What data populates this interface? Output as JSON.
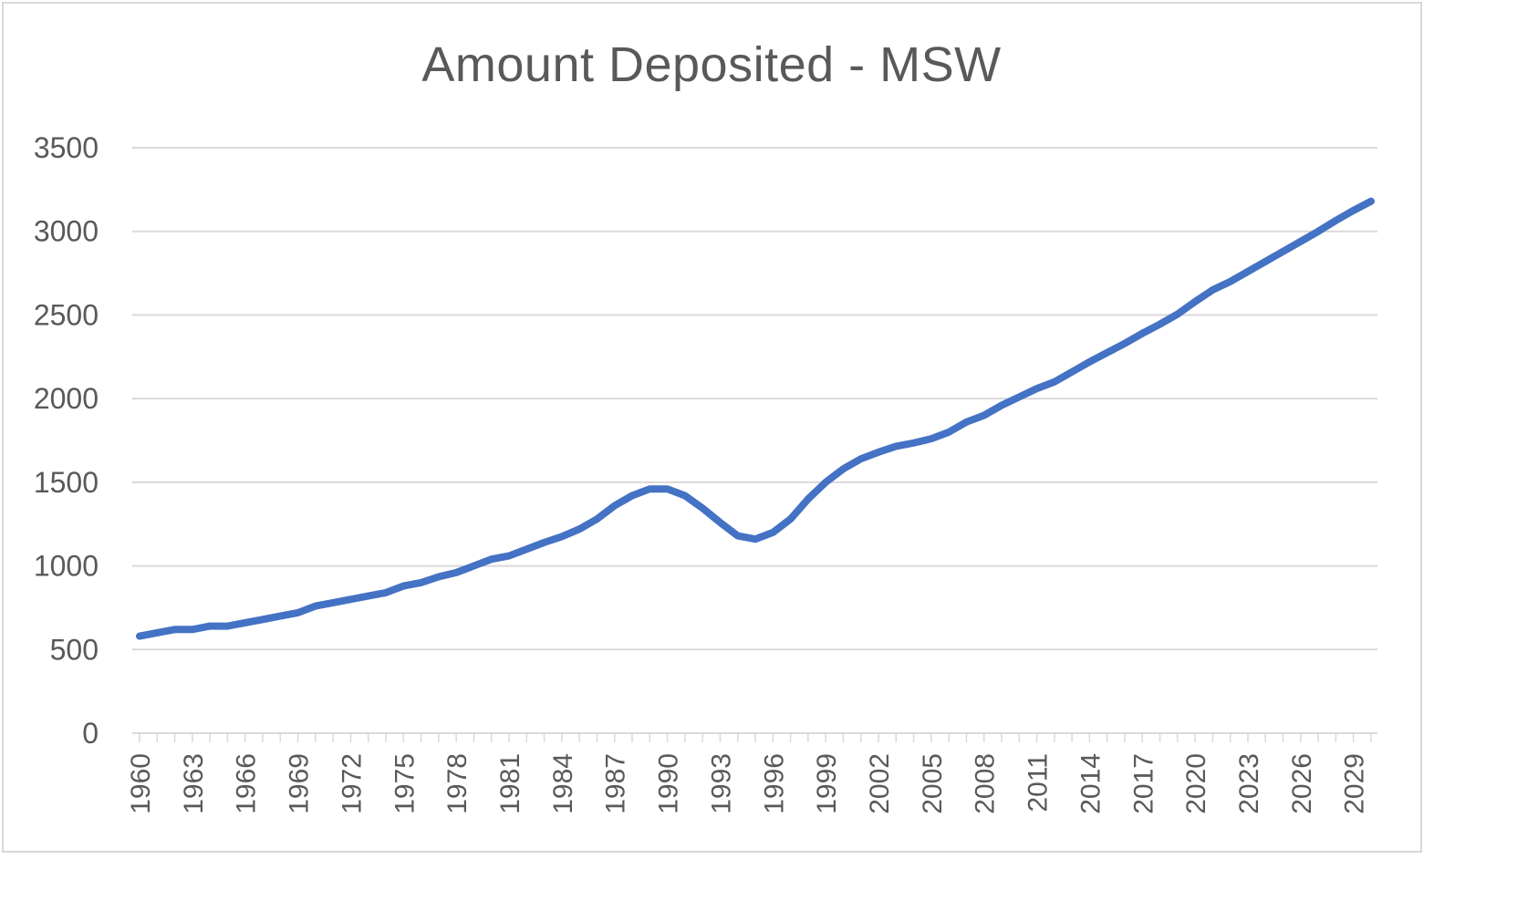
{
  "chart_data": {
    "type": "line",
    "title": "Amount Deposited - MSW",
    "xlabel": "",
    "ylabel": "",
    "ylim": [
      0,
      3500
    ],
    "yticks": [
      "0",
      "500",
      "1000",
      "1500",
      "2000",
      "2500",
      "3000",
      "3500"
    ],
    "xticks": [
      "1960",
      "1963",
      "1966",
      "1969",
      "1972",
      "1975",
      "1978",
      "1981",
      "1984",
      "1987",
      "1990",
      "1993",
      "1996",
      "1999",
      "2002",
      "2005",
      "2008",
      "2011",
      "2014",
      "2017",
      "2020",
      "2023",
      "2026",
      "2029"
    ],
    "grid": "horizontal",
    "legend": "none",
    "line_color": "#4472c4",
    "x": [
      1960,
      1961,
      1962,
      1963,
      1964,
      1965,
      1966,
      1967,
      1968,
      1969,
      1970,
      1971,
      1972,
      1973,
      1974,
      1975,
      1976,
      1977,
      1978,
      1979,
      1980,
      1981,
      1982,
      1983,
      1984,
      1985,
      1986,
      1987,
      1988,
      1989,
      1990,
      1991,
      1992,
      1993,
      1994,
      1995,
      1996,
      1997,
      1998,
      1999,
      2000,
      2001,
      2002,
      2003,
      2004,
      2005,
      2006,
      2007,
      2008,
      2009,
      2010,
      2011,
      2012,
      2013,
      2014,
      2015,
      2016,
      2017,
      2018,
      2019,
      2020,
      2021,
      2022,
      2023,
      2024,
      2025,
      2026,
      2027,
      2028,
      2029,
      2030
    ],
    "series": [
      {
        "values": [
          580,
          600,
          620,
          620,
          640,
          640,
          660,
          680,
          700,
          720,
          760,
          780,
          800,
          820,
          840,
          880,
          900,
          935,
          960,
          1000,
          1040,
          1060,
          1100,
          1140,
          1175,
          1220,
          1280,
          1360,
          1420,
          1460,
          1460,
          1420,
          1345,
          1260,
          1180,
          1160,
          1200,
          1280,
          1400,
          1500,
          1580,
          1640,
          1680,
          1715,
          1735,
          1760,
          1800,
          1860,
          1900,
          1960,
          2010,
          2060,
          2100,
          2160,
          2220,
          2275,
          2330,
          2390,
          2445,
          2505,
          2580,
          2650,
          2700,
          2760,
          2820,
          2880,
          2940,
          3000,
          3065,
          3125,
          3180
        ]
      }
    ]
  }
}
